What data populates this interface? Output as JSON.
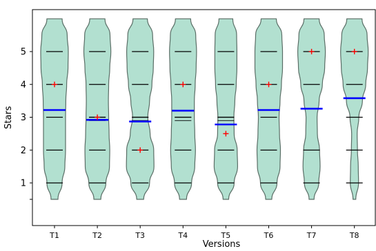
{
  "chart_data": {
    "type": "violin",
    "title": "",
    "xlabel": "Versions",
    "ylabel": "Stars",
    "categories": [
      "T1",
      "T2",
      "T3",
      "T4",
      "T5",
      "T6",
      "T7",
      "T8"
    ],
    "y_ticks": [
      1,
      2,
      3,
      4,
      5
    ],
    "ylim": [
      0.1,
      6.2
    ],
    "grid": false,
    "fill_color": "#b2e0d0",
    "edge_color": "#5a6e66",
    "mean_color": "#0000ff",
    "median_color": "#ff0000",
    "quartile_color": "#000000",
    "violins": [
      {
        "category": "T1",
        "mean": 3.22,
        "median": 4.0,
        "quartiles": [
          1,
          2,
          3,
          4,
          5
        ],
        "density": [
          [
            0.5,
            0.25
          ],
          [
            1,
            0.55
          ],
          [
            1.5,
            0.75
          ],
          [
            2,
            0.8
          ],
          [
            2.5,
            0.8
          ],
          [
            3,
            0.8
          ],
          [
            3.5,
            0.82
          ],
          [
            4,
            0.88
          ],
          [
            4.5,
            0.98
          ],
          [
            5,
            1.0
          ],
          [
            5.5,
            0.92
          ],
          [
            6,
            0.55
          ]
        ]
      },
      {
        "category": "T2",
        "mean": 2.92,
        "median": 3.0,
        "quartiles": [
          1,
          2,
          3,
          3,
          4,
          5
        ],
        "density": [
          [
            0.5,
            0.25
          ],
          [
            1,
            0.62
          ],
          [
            1.5,
            0.88
          ],
          [
            2,
            0.9
          ],
          [
            2.5,
            0.85
          ],
          [
            3,
            0.82
          ],
          [
            3.5,
            0.8
          ],
          [
            4,
            0.82
          ],
          [
            4.5,
            0.9
          ],
          [
            5,
            0.98
          ],
          [
            5.5,
            0.92
          ],
          [
            6,
            0.55
          ]
        ]
      },
      {
        "category": "T3",
        "mean": 2.87,
        "median": 2.0,
        "quartiles": [
          1,
          2,
          3,
          3,
          4,
          5
        ],
        "density": [
          [
            0.5,
            0.25
          ],
          [
            1,
            0.68
          ],
          [
            1.5,
            1.0
          ],
          [
            2,
            0.98
          ],
          [
            2.5,
            0.72
          ],
          [
            3,
            0.55
          ],
          [
            3.5,
            0.68
          ],
          [
            4,
            0.85
          ],
          [
            4.5,
            0.95
          ],
          [
            5,
            0.98
          ],
          [
            5.5,
            0.9
          ],
          [
            6,
            0.52
          ]
        ]
      },
      {
        "category": "T4",
        "mean": 3.2,
        "median": 4.0,
        "quartiles": [
          1,
          2,
          3,
          3,
          4,
          5
        ],
        "density": [
          [
            0.5,
            0.25
          ],
          [
            1,
            0.62
          ],
          [
            1.5,
            0.85
          ],
          [
            2,
            0.9
          ],
          [
            2.5,
            0.85
          ],
          [
            3,
            0.82
          ],
          [
            3.5,
            0.82
          ],
          [
            4,
            0.88
          ],
          [
            4.5,
            0.95
          ],
          [
            5,
            0.98
          ],
          [
            5.5,
            0.92
          ],
          [
            6,
            0.55
          ]
        ]
      },
      {
        "category": "T5",
        "mean": 2.78,
        "median": 2.5,
        "quartiles": [
          1,
          2,
          3,
          3,
          4,
          5
        ],
        "density": [
          [
            0.5,
            0.2
          ],
          [
            1,
            0.6
          ],
          [
            1.5,
            0.85
          ],
          [
            2,
            0.82
          ],
          [
            2.5,
            0.6
          ],
          [
            3,
            0.58
          ],
          [
            3.5,
            0.65
          ],
          [
            4,
            0.75
          ],
          [
            4.5,
            0.8
          ],
          [
            5,
            0.8
          ],
          [
            5.5,
            0.78
          ],
          [
            6,
            0.5
          ]
        ]
      },
      {
        "category": "T6",
        "mean": 3.22,
        "median": 4.0,
        "quartiles": [
          1,
          2,
          3,
          4,
          5
        ],
        "density": [
          [
            0.5,
            0.22
          ],
          [
            1,
            0.6
          ],
          [
            1.5,
            0.82
          ],
          [
            2,
            0.85
          ],
          [
            2.5,
            0.78
          ],
          [
            3,
            0.75
          ],
          [
            3.5,
            0.82
          ],
          [
            4,
            0.92
          ],
          [
            4.5,
            1.0
          ],
          [
            5,
            1.0
          ],
          [
            5.5,
            0.95
          ],
          [
            6,
            0.55
          ]
        ]
      },
      {
        "category": "T7",
        "mean": 3.26,
        "median": 5.0,
        "quartiles": [
          1,
          2,
          4,
          5
        ],
        "density": [
          [
            0.5,
            0.18
          ],
          [
            1,
            0.52
          ],
          [
            1.5,
            0.62
          ],
          [
            2,
            0.58
          ],
          [
            2.5,
            0.42
          ],
          [
            3,
            0.4
          ],
          [
            3.5,
            0.55
          ],
          [
            4,
            0.78
          ],
          [
            4.5,
            0.95
          ],
          [
            5,
            1.0
          ],
          [
            5.5,
            0.92
          ],
          [
            6,
            0.55
          ]
        ]
      },
      {
        "category": "T8",
        "mean": 3.58,
        "median": 5.0,
        "quartiles": [
          1,
          2,
          3,
          4,
          5
        ],
        "density": [
          [
            0.5,
            0.1
          ],
          [
            1,
            0.3
          ],
          [
            1.5,
            0.28
          ],
          [
            2,
            0.22
          ],
          [
            2.5,
            0.2
          ],
          [
            3,
            0.32
          ],
          [
            3.5,
            0.58
          ],
          [
            4,
            0.82
          ],
          [
            4.5,
            0.95
          ],
          [
            5,
            1.0
          ],
          [
            5.5,
            0.92
          ],
          [
            6,
            0.55
          ]
        ]
      }
    ]
  }
}
